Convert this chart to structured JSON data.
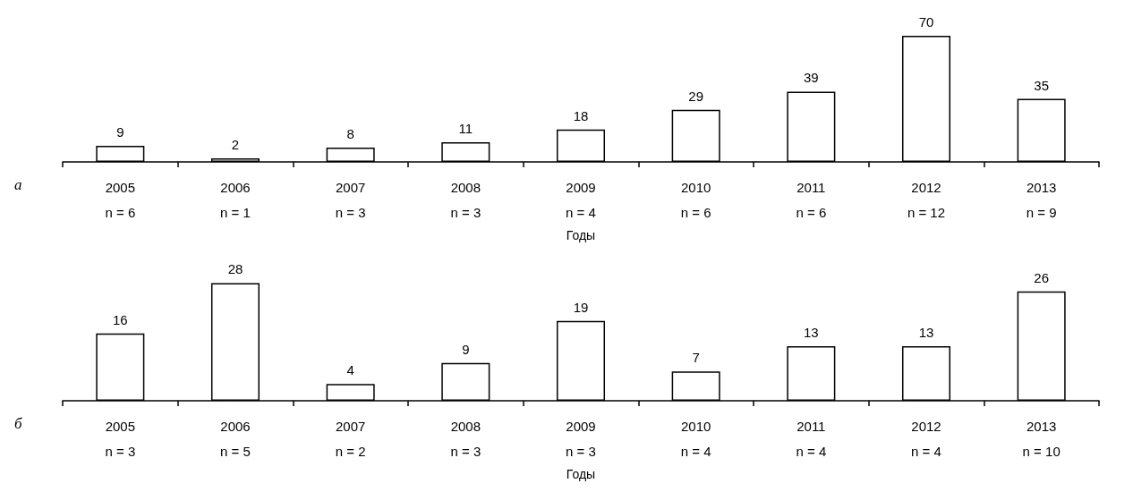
{
  "chart_data": [
    {
      "type": "bar",
      "categories": [
        "2005\nn = 6",
        "2006\nn = 1",
        "2007\nn = 3",
        "2008\nn = 3",
        "2009\nn = 4",
        "2010\nn = 6",
        "2011\nn = 6",
        "2012\nn = 12",
        "2013\nn = 9"
      ],
      "values": [
        9,
        2,
        8,
        11,
        18,
        29,
        39,
        70,
        35
      ],
      "color": "#ffffff",
      "data_labels": true,
      "xlabel": "Годы",
      "annotations": [
        "а"
      ],
      "tick_labels": "x"
    },
    {
      "type": "bar",
      "categories": [
        "2005\nn = 3",
        "2006\nn = 5",
        "2007\nn = 2",
        "2008\nn = 3",
        "2009\nn = 3",
        "2010\nn = 4",
        "2011\nn = 4",
        "2012\nn = 4",
        "2013\nn = 10"
      ],
      "values": [
        16,
        28,
        4,
        9,
        19,
        7,
        13,
        13,
        26
      ],
      "color": "#ffffff",
      "data_labels": true,
      "xlabel": "Годы",
      "annotations": [
        "б"
      ],
      "tick_labels": "x"
    }
  ]
}
